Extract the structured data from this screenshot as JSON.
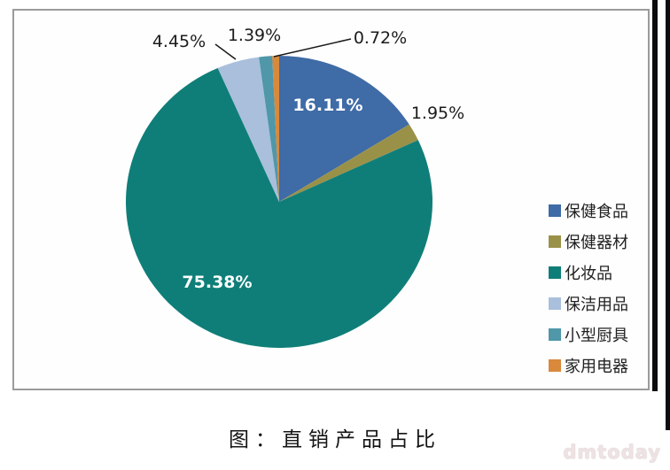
{
  "chart_data": {
    "type": "pie",
    "title": "图：直销产品占比",
    "direction": "clockwise",
    "start_angle_deg": 0,
    "legend_position": "right",
    "slices": [
      {
        "name": "保健食品",
        "value": 16.11,
        "label": "16.11%",
        "color": "#3F6BA6",
        "label_placement": "inside"
      },
      {
        "name": "保健器材",
        "value": 1.95,
        "label": "1.95%",
        "color": "#9A9149",
        "label_placement": "outside"
      },
      {
        "name": "化妆品",
        "value": 75.38,
        "label": "75.38%",
        "color": "#0F7E79",
        "label_placement": "inside"
      },
      {
        "name": "保洁用品",
        "value": 4.45,
        "label": "4.45%",
        "color": "#A9BFDC",
        "label_placement": "outside"
      },
      {
        "name": "小型厨具",
        "value": 1.39,
        "label": "1.39%",
        "color": "#4F97A9",
        "label_placement": "outside"
      },
      {
        "name": "家用电器",
        "value": 0.72,
        "label": "0.72%",
        "color": "#D8893B",
        "label_placement": "outside"
      }
    ]
  },
  "caption": "图：直销产品占比",
  "watermark": "dmtoday"
}
